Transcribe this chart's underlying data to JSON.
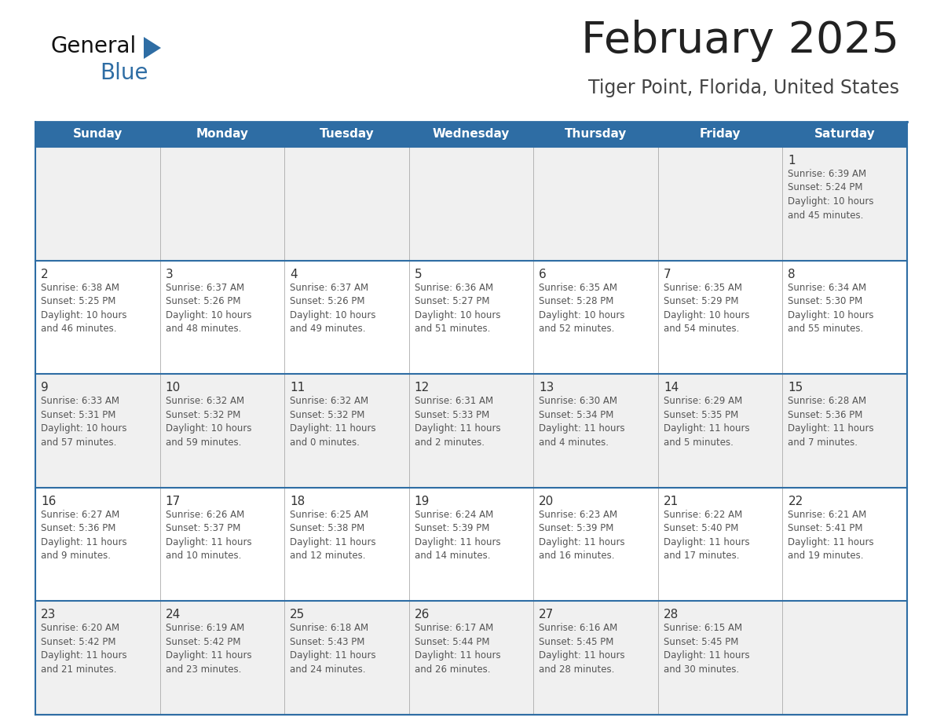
{
  "title": "February 2025",
  "subtitle": "Tiger Point, Florida, United States",
  "header_bg": "#2E6DA4",
  "header_text_color": "#FFFFFF",
  "day_names": [
    "Sunday",
    "Monday",
    "Tuesday",
    "Wednesday",
    "Thursday",
    "Friday",
    "Saturday"
  ],
  "bg_color": "#FFFFFF",
  "cell_bg_row0": "#F0F0F0",
  "cell_bg_row1": "#FFFFFF",
  "cell_bg_row2": "#F0F0F0",
  "cell_bg_row3": "#FFFFFF",
  "cell_bg_row4": "#F0F0F0",
  "border_color": "#2E6DA4",
  "divider_color": "#AAAAAA",
  "text_color": "#555555",
  "date_color": "#333333",
  "calendar": [
    [
      {
        "day": 0,
        "info": ""
      },
      {
        "day": 0,
        "info": ""
      },
      {
        "day": 0,
        "info": ""
      },
      {
        "day": 0,
        "info": ""
      },
      {
        "day": 0,
        "info": ""
      },
      {
        "day": 0,
        "info": ""
      },
      {
        "day": 1,
        "info": "Sunrise: 6:39 AM\nSunset: 5:24 PM\nDaylight: 10 hours\nand 45 minutes."
      }
    ],
    [
      {
        "day": 2,
        "info": "Sunrise: 6:38 AM\nSunset: 5:25 PM\nDaylight: 10 hours\nand 46 minutes."
      },
      {
        "day": 3,
        "info": "Sunrise: 6:37 AM\nSunset: 5:26 PM\nDaylight: 10 hours\nand 48 minutes."
      },
      {
        "day": 4,
        "info": "Sunrise: 6:37 AM\nSunset: 5:26 PM\nDaylight: 10 hours\nand 49 minutes."
      },
      {
        "day": 5,
        "info": "Sunrise: 6:36 AM\nSunset: 5:27 PM\nDaylight: 10 hours\nand 51 minutes."
      },
      {
        "day": 6,
        "info": "Sunrise: 6:35 AM\nSunset: 5:28 PM\nDaylight: 10 hours\nand 52 minutes."
      },
      {
        "day": 7,
        "info": "Sunrise: 6:35 AM\nSunset: 5:29 PM\nDaylight: 10 hours\nand 54 minutes."
      },
      {
        "day": 8,
        "info": "Sunrise: 6:34 AM\nSunset: 5:30 PM\nDaylight: 10 hours\nand 55 minutes."
      }
    ],
    [
      {
        "day": 9,
        "info": "Sunrise: 6:33 AM\nSunset: 5:31 PM\nDaylight: 10 hours\nand 57 minutes."
      },
      {
        "day": 10,
        "info": "Sunrise: 6:32 AM\nSunset: 5:32 PM\nDaylight: 10 hours\nand 59 minutes."
      },
      {
        "day": 11,
        "info": "Sunrise: 6:32 AM\nSunset: 5:32 PM\nDaylight: 11 hours\nand 0 minutes."
      },
      {
        "day": 12,
        "info": "Sunrise: 6:31 AM\nSunset: 5:33 PM\nDaylight: 11 hours\nand 2 minutes."
      },
      {
        "day": 13,
        "info": "Sunrise: 6:30 AM\nSunset: 5:34 PM\nDaylight: 11 hours\nand 4 minutes."
      },
      {
        "day": 14,
        "info": "Sunrise: 6:29 AM\nSunset: 5:35 PM\nDaylight: 11 hours\nand 5 minutes."
      },
      {
        "day": 15,
        "info": "Sunrise: 6:28 AM\nSunset: 5:36 PM\nDaylight: 11 hours\nand 7 minutes."
      }
    ],
    [
      {
        "day": 16,
        "info": "Sunrise: 6:27 AM\nSunset: 5:36 PM\nDaylight: 11 hours\nand 9 minutes."
      },
      {
        "day": 17,
        "info": "Sunrise: 6:26 AM\nSunset: 5:37 PM\nDaylight: 11 hours\nand 10 minutes."
      },
      {
        "day": 18,
        "info": "Sunrise: 6:25 AM\nSunset: 5:38 PM\nDaylight: 11 hours\nand 12 minutes."
      },
      {
        "day": 19,
        "info": "Sunrise: 6:24 AM\nSunset: 5:39 PM\nDaylight: 11 hours\nand 14 minutes."
      },
      {
        "day": 20,
        "info": "Sunrise: 6:23 AM\nSunset: 5:39 PM\nDaylight: 11 hours\nand 16 minutes."
      },
      {
        "day": 21,
        "info": "Sunrise: 6:22 AM\nSunset: 5:40 PM\nDaylight: 11 hours\nand 17 minutes."
      },
      {
        "day": 22,
        "info": "Sunrise: 6:21 AM\nSunset: 5:41 PM\nDaylight: 11 hours\nand 19 minutes."
      }
    ],
    [
      {
        "day": 23,
        "info": "Sunrise: 6:20 AM\nSunset: 5:42 PM\nDaylight: 11 hours\nand 21 minutes."
      },
      {
        "day": 24,
        "info": "Sunrise: 6:19 AM\nSunset: 5:42 PM\nDaylight: 11 hours\nand 23 minutes."
      },
      {
        "day": 25,
        "info": "Sunrise: 6:18 AM\nSunset: 5:43 PM\nDaylight: 11 hours\nand 24 minutes."
      },
      {
        "day": 26,
        "info": "Sunrise: 6:17 AM\nSunset: 5:44 PM\nDaylight: 11 hours\nand 26 minutes."
      },
      {
        "day": 27,
        "info": "Sunrise: 6:16 AM\nSunset: 5:45 PM\nDaylight: 11 hours\nand 28 minutes."
      },
      {
        "day": 28,
        "info": "Sunrise: 6:15 AM\nSunset: 5:45 PM\nDaylight: 11 hours\nand 30 minutes."
      },
      {
        "day": 0,
        "info": ""
      }
    ]
  ],
  "logo_color_general": "#111111",
  "logo_color_blue": "#2E6DA4",
  "logo_triangle_color": "#2E6DA4",
  "title_color": "#222222",
  "subtitle_color": "#444444",
  "title_fontsize": 40,
  "subtitle_fontsize": 17,
  "header_fontsize": 11,
  "day_num_fontsize": 11,
  "info_fontsize": 8.5
}
